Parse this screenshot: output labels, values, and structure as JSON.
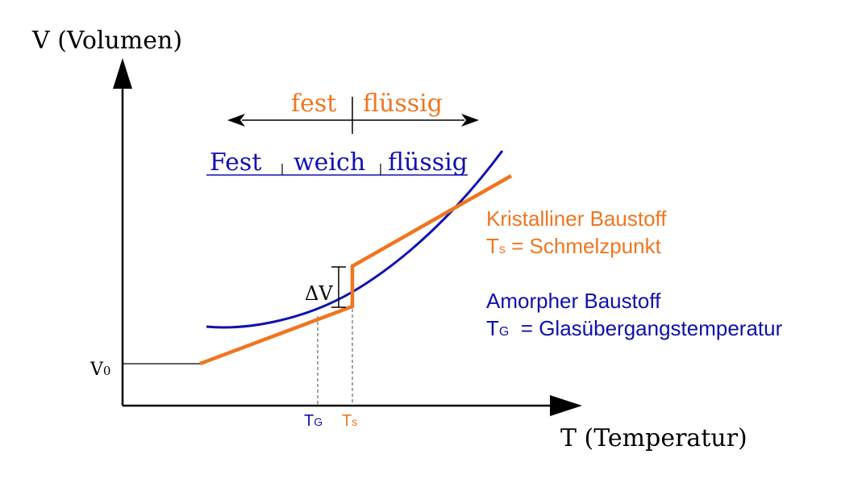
{
  "colors": {
    "crystalline": "#f07520",
    "amorphous": "#1010b0",
    "axis": "#000000"
  },
  "axes": {
    "y_label": "V (Volumen)",
    "x_label": "T (Temperatur)",
    "v0_main": "V",
    "v0_sub": "0"
  },
  "crystalline_phases": {
    "fest": "fest",
    "fluessig": "flüssig"
  },
  "amorphous_phases": {
    "fest": "Fest",
    "weich": "weich",
    "fluessig": "flüssig"
  },
  "delta_v": "ΔV",
  "ticks": {
    "tg_main": "T",
    "tg_sub": "G",
    "ts_main": "T",
    "ts_sub": "s"
  },
  "legend": {
    "crystalline_title": "Kristalliner Baustoff",
    "crystalline_main": "T",
    "crystalline_sub": "s",
    "crystalline_def": " = Schmelzpunkt",
    "amorphous_title": "Amorpher Baustoff",
    "amorphous_main": "T",
    "amorphous_sub": "G",
    "amorphous_def": "  = Glasübergangstemperatur"
  }
}
